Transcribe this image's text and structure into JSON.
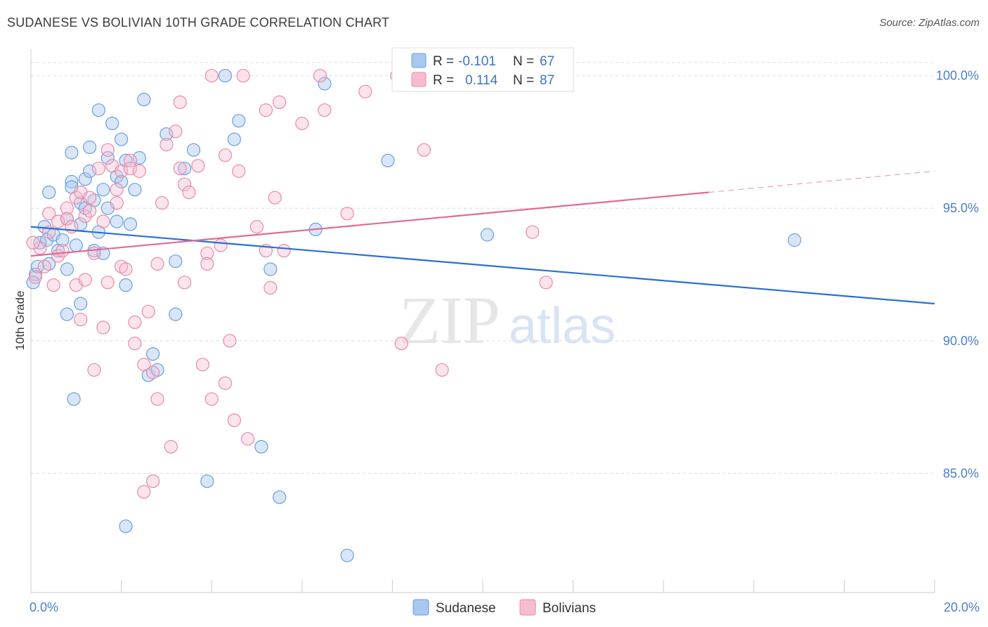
{
  "title": "SUDANESE VS BOLIVIAN 10TH GRADE CORRELATION CHART",
  "source": "Source: ZipAtlas.com",
  "watermark": {
    "zip": "ZIP",
    "atlas": "atlas"
  },
  "legend": {
    "rows": [
      {
        "r_label": "R =",
        "r_value": "-0.101",
        "n_label": "N =",
        "n_value": "67",
        "color": "#a8c8f0",
        "stroke": "#6a9fe0"
      },
      {
        "r_label": "R =",
        "r_value": "0.114",
        "n_label": "N =",
        "n_value": "87",
        "color": "#f8bcd0",
        "stroke": "#e88aa8"
      }
    ]
  },
  "bottom_legend": [
    {
      "label": "Sudanese",
      "color": "#a8c8f0",
      "stroke": "#6a9fe0"
    },
    {
      "label": "Bolivians",
      "color": "#f8bcd0",
      "stroke": "#e88aa8"
    }
  ],
  "chart_data": {
    "type": "scatter",
    "title": "SUDANESE VS BOLIVIAN 10TH GRADE CORRELATION CHART",
    "xlabel": "",
    "ylabel": "10th Grade",
    "xlim": [
      0,
      20
    ],
    "ylim": [
      80.5,
      101
    ],
    "x_tick_labels": [
      "0.0%",
      "20.0%"
    ],
    "x_tick_values": [
      0,
      20
    ],
    "y_tick_labels": [
      "85.0%",
      "90.0%",
      "95.0%",
      "100.0%"
    ],
    "y_tick_values": [
      85,
      90,
      95,
      100
    ],
    "grid": true,
    "legend_position": "top-center",
    "series": [
      {
        "name": "Sudanese",
        "color": "#6a9fe0",
        "trend": {
          "x": [
            0,
            20
          ],
          "y": [
            94.3,
            91.4
          ]
        },
        "points": [
          [
            0.1,
            92.5
          ],
          [
            0.2,
            93.7
          ],
          [
            0.3,
            94.3
          ],
          [
            0.35,
            93.8
          ],
          [
            0.4,
            92.9
          ],
          [
            0.5,
            94.0
          ],
          [
            0.4,
            95.6
          ],
          [
            0.6,
            93.4
          ],
          [
            0.7,
            93.8
          ],
          [
            0.8,
            94.6
          ],
          [
            0.8,
            92.7
          ],
          [
            0.9,
            96.0
          ],
          [
            0.9,
            95.8
          ],
          [
            0.8,
            91.0
          ],
          [
            0.9,
            97.1
          ],
          [
            1.0,
            93.6
          ],
          [
            1.1,
            95.2
          ],
          [
            1.1,
            94.4
          ],
          [
            1.1,
            91.4
          ],
          [
            1.2,
            95.0
          ],
          [
            1.2,
            96.1
          ],
          [
            1.3,
            96.4
          ],
          [
            1.3,
            97.3
          ],
          [
            1.4,
            93.4
          ],
          [
            1.4,
            95.3
          ],
          [
            1.5,
            98.7
          ],
          [
            1.5,
            94.1
          ],
          [
            1.6,
            93.3
          ],
          [
            1.6,
            95.7
          ],
          [
            1.7,
            95.0
          ],
          [
            1.7,
            96.9
          ],
          [
            1.8,
            98.2
          ],
          [
            1.9,
            96.2
          ],
          [
            1.9,
            94.5
          ],
          [
            2.0,
            96.0
          ],
          [
            2.0,
            97.6
          ],
          [
            2.1,
            92.1
          ],
          [
            2.1,
            96.8
          ],
          [
            2.2,
            94.4
          ],
          [
            2.3,
            95.7
          ],
          [
            2.4,
            96.9
          ],
          [
            2.5,
            99.1
          ],
          [
            2.7,
            89.5
          ],
          [
            2.6,
            88.7
          ],
          [
            2.8,
            88.9
          ],
          [
            3.0,
            97.8
          ],
          [
            3.2,
            93.0
          ],
          [
            3.2,
            91.0
          ],
          [
            3.4,
            96.5
          ],
          [
            3.6,
            97.2
          ],
          [
            3.9,
            84.7
          ],
          [
            4.3,
            100.0
          ],
          [
            4.5,
            97.6
          ],
          [
            4.6,
            98.3
          ],
          [
            5.1,
            86.0
          ],
          [
            5.3,
            92.7
          ],
          [
            5.5,
            84.1
          ],
          [
            6.3,
            94.2
          ],
          [
            6.5,
            99.7
          ],
          [
            7.0,
            81.9
          ],
          [
            2.1,
            83.0
          ],
          [
            0.95,
            87.8
          ],
          [
            7.9,
            96.8
          ],
          [
            10.1,
            94.0
          ],
          [
            16.9,
            93.8
          ],
          [
            0.05,
            92.2
          ],
          [
            0.15,
            92.8
          ]
        ]
      },
      {
        "name": "Bolivians",
        "color": "#e88aa8",
        "trend": {
          "x": [
            0,
            15
          ],
          "y": [
            93.2,
            95.6
          ],
          "dashed_to": {
            "x": 20,
            "y": 96.4
          }
        },
        "points": [
          [
            0.1,
            92.4
          ],
          [
            0.2,
            93.5
          ],
          [
            0.3,
            92.8
          ],
          [
            0.4,
            94.1
          ],
          [
            0.4,
            94.8
          ],
          [
            0.5,
            92.1
          ],
          [
            0.6,
            93.2
          ],
          [
            0.6,
            94.5
          ],
          [
            0.7,
            93.4
          ],
          [
            0.8,
            95.0
          ],
          [
            0.8,
            94.6
          ],
          [
            0.9,
            94.3
          ],
          [
            1.0,
            92.1
          ],
          [
            1.0,
            95.4
          ],
          [
            1.1,
            95.6
          ],
          [
            1.1,
            90.8
          ],
          [
            1.2,
            94.7
          ],
          [
            1.2,
            92.3
          ],
          [
            1.3,
            94.9
          ],
          [
            1.3,
            95.4
          ],
          [
            1.4,
            93.3
          ],
          [
            1.4,
            88.9
          ],
          [
            1.5,
            96.5
          ],
          [
            1.6,
            94.5
          ],
          [
            1.6,
            90.5
          ],
          [
            1.7,
            97.2
          ],
          [
            1.7,
            92.2
          ],
          [
            1.8,
            96.6
          ],
          [
            1.9,
            95.2
          ],
          [
            1.9,
            95.7
          ],
          [
            2.0,
            92.8
          ],
          [
            2.0,
            96.4
          ],
          [
            2.1,
            92.7
          ],
          [
            2.2,
            96.8
          ],
          [
            2.2,
            96.5
          ],
          [
            2.3,
            89.9
          ],
          [
            2.3,
            90.7
          ],
          [
            2.4,
            96.4
          ],
          [
            2.5,
            89.1
          ],
          [
            2.5,
            84.3
          ],
          [
            2.6,
            91.1
          ],
          [
            2.7,
            84.7
          ],
          [
            2.7,
            88.8
          ],
          [
            2.8,
            87.8
          ],
          [
            2.8,
            92.9
          ],
          [
            2.9,
            95.2
          ],
          [
            3.0,
            97.4
          ],
          [
            3.1,
            86.0
          ],
          [
            3.2,
            97.9
          ],
          [
            3.3,
            99.0
          ],
          [
            3.3,
            96.5
          ],
          [
            3.4,
            92.2
          ],
          [
            3.4,
            95.9
          ],
          [
            3.5,
            95.6
          ],
          [
            3.7,
            96.6
          ],
          [
            3.8,
            89.1
          ],
          [
            3.9,
            93.3
          ],
          [
            3.9,
            92.9
          ],
          [
            4.0,
            87.8
          ],
          [
            4.0,
            100.0
          ],
          [
            4.2,
            93.6
          ],
          [
            4.3,
            97.0
          ],
          [
            4.3,
            88.4
          ],
          [
            4.4,
            90.0
          ],
          [
            4.5,
            87.0
          ],
          [
            4.6,
            96.4
          ],
          [
            4.7,
            100.0
          ],
          [
            4.8,
            86.3
          ],
          [
            5.0,
            94.3
          ],
          [
            5.2,
            93.4
          ],
          [
            5.2,
            98.7
          ],
          [
            5.3,
            92.0
          ],
          [
            5.4,
            95.4
          ],
          [
            5.5,
            99.0
          ],
          [
            5.6,
            93.4
          ],
          [
            6.0,
            98.2
          ],
          [
            6.4,
            100.0
          ],
          [
            6.5,
            98.7
          ],
          [
            7.0,
            94.8
          ],
          [
            7.4,
            99.4
          ],
          [
            8.1,
            100.0
          ],
          [
            8.2,
            89.9
          ],
          [
            8.7,
            97.2
          ],
          [
            9.1,
            88.9
          ],
          [
            11.1,
            94.1
          ],
          [
            11.4,
            92.2
          ],
          [
            0.05,
            93.7
          ]
        ]
      }
    ]
  }
}
